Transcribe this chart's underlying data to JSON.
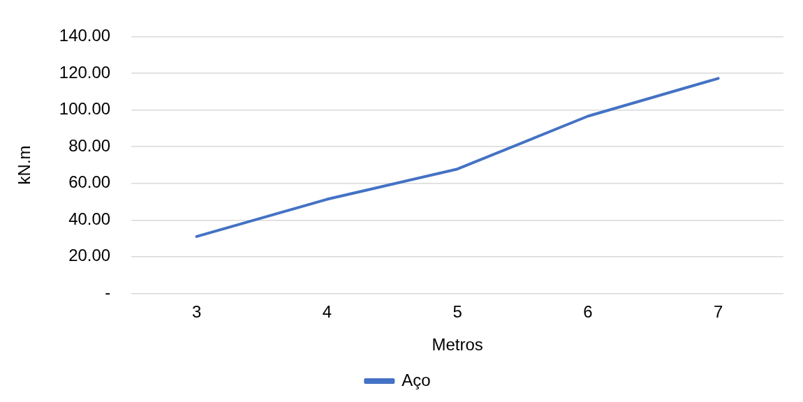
{
  "chart_data": {
    "type": "line",
    "xlabel": "Metros",
    "ylabel": "kN.m",
    "categories": [
      "3",
      "4",
      "5",
      "6",
      "7"
    ],
    "series": [
      {
        "name": "Aço",
        "color": "#4472c4",
        "values": [
          31,
          51.3,
          67.8,
          96.6,
          117.2
        ]
      }
    ],
    "ylim": [
      0,
      140
    ],
    "yticks": [
      {
        "value": 0,
        "label": "-"
      },
      {
        "value": 20,
        "label": "20.00"
      },
      {
        "value": 40,
        "label": "40.00"
      },
      {
        "value": 60,
        "label": "60.00"
      },
      {
        "value": 80,
        "label": "80.00"
      },
      {
        "value": 100,
        "label": "100.00"
      },
      {
        "value": 120,
        "label": "120.00"
      },
      {
        "value": 140,
        "label": "140.00"
      }
    ],
    "grid": "y",
    "legend": "bottom",
    "marker": "none",
    "line_style": "solid"
  }
}
